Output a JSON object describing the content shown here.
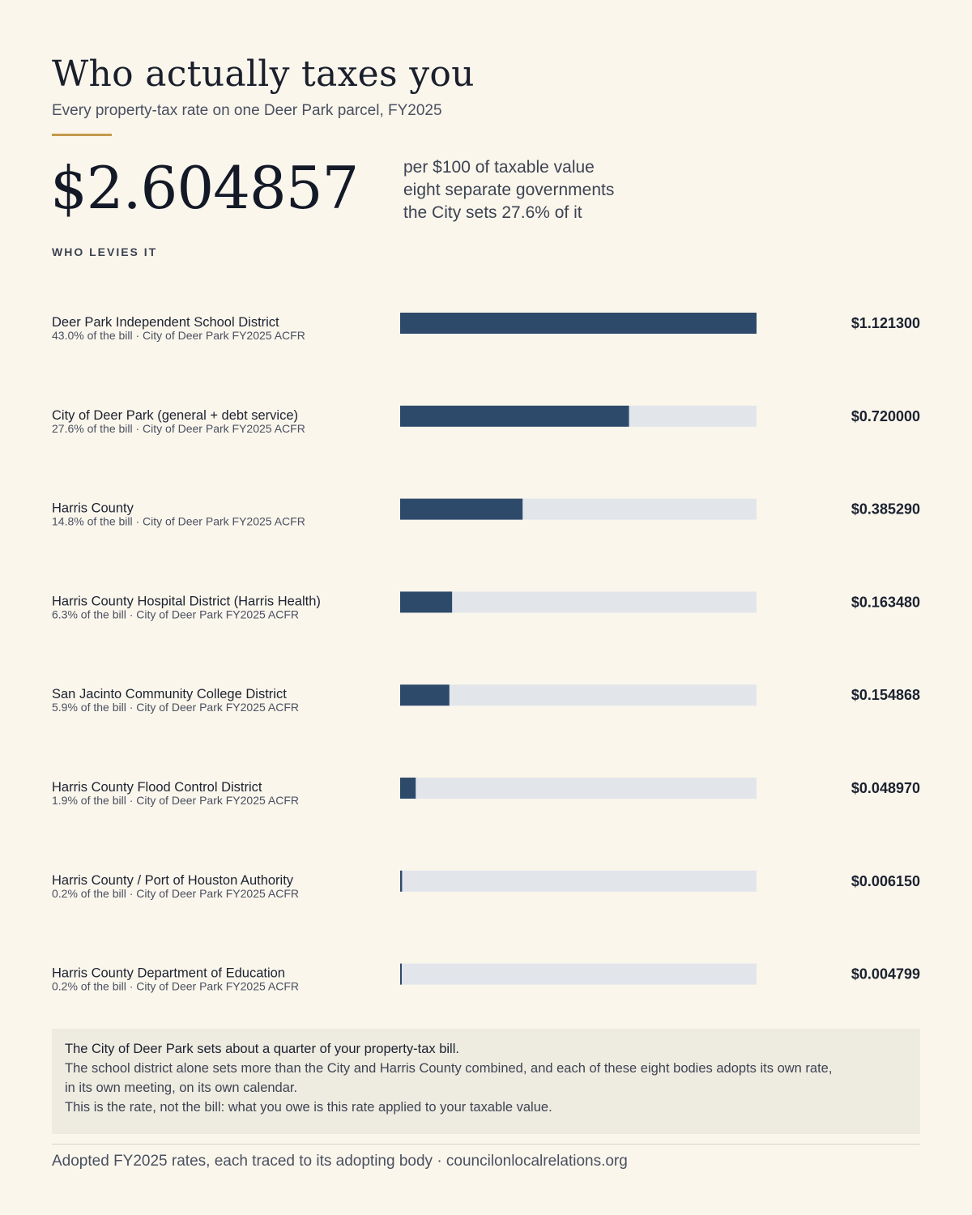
{
  "header": {
    "title": "Who actually taxes you",
    "subtitle": "Every property-tax rate on one Deer Park parcel, FY2025"
  },
  "total": {
    "value": "$2.604857",
    "notes": [
      "per $100 of taxable value",
      "eight separate governments",
      "the City sets 27.6% of it"
    ]
  },
  "section_label": "WHO LEVIES IT",
  "colors": {
    "background": "#faf6ec",
    "bar_fill": "#2e4a6b",
    "bar_track": "#e2e5ea",
    "accent": "#c49a4d"
  },
  "chart_data": {
    "type": "bar",
    "orientation": "horizontal",
    "categories": [
      "Deer Park Independent School District",
      "City of Deer Park (general + debt service)",
      "Harris County",
      "Harris County Hospital District (Harris Health)",
      "San Jacinto Community College District",
      "Harris County Flood Control District",
      "Harris County / Port of Houston Authority",
      "Harris County Department of Education"
    ],
    "subtitles": [
      "43.0% of the bill · City of Deer Park FY2025 ACFR",
      "27.6% of the bill · City of Deer Park FY2025 ACFR",
      "14.8% of the bill · City of Deer Park FY2025 ACFR",
      "6.3% of the bill · City of Deer Park FY2025 ACFR",
      "5.9% of the bill · City of Deer Park FY2025 ACFR",
      "1.9% of the bill · City of Deer Park FY2025 ACFR",
      "0.2% of the bill · City of Deer Park FY2025 ACFR",
      "0.2% of the bill · City of Deer Park FY2025 ACFR"
    ],
    "values": [
      1.1213,
      0.72,
      0.38529,
      0.16348,
      0.154868,
      0.04897,
      0.00615,
      0.004799
    ],
    "value_labels": [
      "$1.121300",
      "$0.720000",
      "$0.385290",
      "$0.163480",
      "$0.154868",
      "$0.048970",
      "$0.006150",
      "$0.004799"
    ],
    "xlim": [
      0,
      1.1213
    ],
    "grid": false,
    "legend": "none"
  },
  "callout": {
    "lead": "The City of Deer Park sets about a quarter of your property-tax bill.",
    "body": "The school district alone sets more than the City and Harris County combined, and each of these eight bodies adopts its own rate, in its own meeting, on its own calendar.",
    "note": "This is the rate, not the bill: what you owe is this rate applied to your taxable value."
  },
  "footer": "Adopted FY2025 rates, each traced to its adopting body · councilonlocalrelations.org"
}
